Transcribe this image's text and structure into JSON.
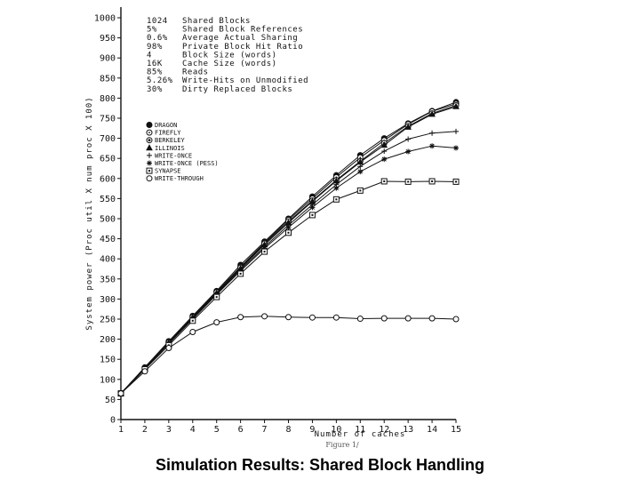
{
  "caption": "Simulation Results: Shared Block Handling",
  "figure_mark": "Figure 1/",
  "params": [
    {
      "value": "1024",
      "label": "Shared Blocks"
    },
    {
      "value": "5%",
      "label": "Shared Block References"
    },
    {
      "value": "0.6%",
      "label": "Average Actual Sharing"
    },
    {
      "value": "98%",
      "label": "Private Block Hit Ratio"
    },
    {
      "value": "4",
      "label": "Block Size (words)"
    },
    {
      "value": "16K",
      "label": "Cache Size (words)"
    },
    {
      "value": "85%",
      "label": "Reads"
    },
    {
      "value": "5.26%",
      "label": "Write-Hits on Unmodified"
    },
    {
      "value": "30%",
      "label": "Dirty Replaced Blocks"
    }
  ],
  "chart_data": {
    "type": "line",
    "title": "",
    "xlabel": "Number of caches",
    "ylabel": "System power (Proc util X num proc X 100)",
    "xlim": [
      1,
      15
    ],
    "ylim": [
      0,
      1000
    ],
    "x": [
      1,
      2,
      3,
      4,
      5,
      6,
      7,
      8,
      9,
      10,
      11,
      12,
      13,
      14,
      15
    ],
    "x_ticks": [
      "1",
      "2",
      "3",
      "4",
      "5",
      "6",
      "7",
      "8",
      "9",
      "10",
      "11",
      "12",
      "13",
      "14",
      "15"
    ],
    "y_ticks": [
      "0",
      "50",
      "100",
      "150",
      "200",
      "250",
      "300",
      "350",
      "400",
      "450",
      "500",
      "550",
      "600",
      "650",
      "700",
      "750",
      "800",
      "850",
      "900",
      "950",
      "1000"
    ],
    "grid": false,
    "legend_position": "upper-left",
    "series": [
      {
        "name": "DRAGON",
        "marker": "filled-circle",
        "values": [
          65,
          130,
          195,
          258,
          320,
          385,
          443,
          500,
          555,
          608,
          658,
          700,
          737,
          768,
          790
        ]
      },
      {
        "name": "FIREFLY",
        "marker": "circle-dot",
        "values": [
          65,
          128,
          192,
          255,
          318,
          380,
          440,
          497,
          550,
          603,
          652,
          695,
          735,
          767,
          786
        ]
      },
      {
        "name": "BERKELEY",
        "marker": "circle-diamond",
        "values": [
          65,
          128,
          192,
          255,
          317,
          378,
          438,
          493,
          545,
          596,
          643,
          688,
          730,
          762,
          782
        ]
      },
      {
        "name": "ILLINOIS",
        "marker": "triangle",
        "values": [
          65,
          128,
          191,
          254,
          315,
          376,
          435,
          490,
          543,
          594,
          641,
          683,
          728,
          760,
          779
        ]
      },
      {
        "name": "WRITE-ONCE",
        "marker": "plus",
        "values": [
          65,
          127,
          190,
          252,
          313,
          373,
          430,
          484,
          535,
          585,
          630,
          668,
          698,
          713,
          717
        ]
      },
      {
        "name": "WRITE-ONCE (PESS)",
        "marker": "star",
        "values": [
          65,
          127,
          189,
          250,
          311,
          370,
          426,
          478,
          528,
          576,
          617,
          648,
          667,
          681,
          676
        ]
      },
      {
        "name": "SYNAPSE",
        "marker": "square",
        "values": [
          65,
          125,
          185,
          246,
          305,
          363,
          418,
          465,
          509,
          548,
          570,
          593,
          592,
          593,
          592
        ]
      },
      {
        "name": "WRITE-THROUGH",
        "marker": "open-circle",
        "values": [
          65,
          120,
          178,
          218,
          242,
          255,
          257,
          255,
          254,
          254,
          251,
          252,
          252,
          252,
          250
        ]
      }
    ]
  }
}
